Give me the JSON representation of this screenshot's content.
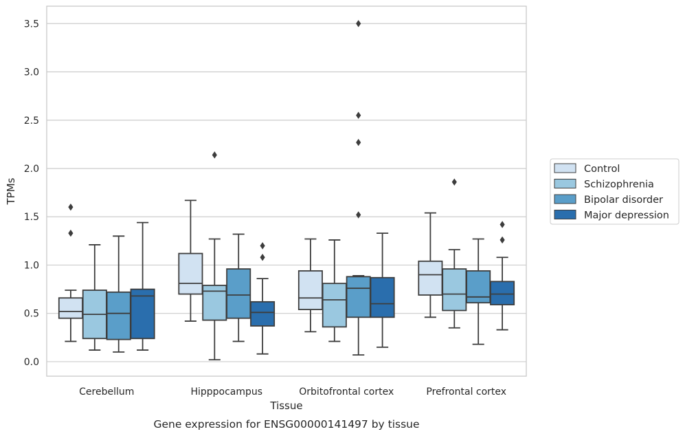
{
  "chart_data": {
    "type": "box",
    "xlabel": "Tissue",
    "ylabel": "TPMs",
    "caption": "Gene expression for ENSG00000141497 by tissue",
    "ylim": [
      -0.15,
      3.68
    ],
    "yticks": [
      0.0,
      0.5,
      1.0,
      1.5,
      2.0,
      2.5,
      3.0,
      3.5
    ],
    "ytick_labels": [
      "0.0",
      "0.5",
      "1.0",
      "1.5",
      "2.0",
      "2.5",
      "3.0",
      "3.5"
    ],
    "grid": "horizontal",
    "legend_position": "right",
    "categories": [
      "Cerebellum",
      "Hipppocampus",
      "Orbitofrontal cortex",
      "Prefrontal cortex"
    ],
    "series": [
      {
        "name": "Control",
        "color": "#d1e2f2",
        "boxes": [
          {
            "whislo": 0.21,
            "q1": 0.45,
            "med": 0.52,
            "q3": 0.66,
            "whishi": 0.74,
            "fliers": [
              1.33,
              1.6
            ]
          },
          {
            "whislo": 0.42,
            "q1": 0.7,
            "med": 0.81,
            "q3": 1.12,
            "whishi": 1.67,
            "fliers": []
          },
          {
            "whislo": 0.31,
            "q1": 0.54,
            "med": 0.66,
            "q3": 0.94,
            "whishi": 1.27,
            "fliers": []
          },
          {
            "whislo": 0.46,
            "q1": 0.69,
            "med": 0.9,
            "q3": 1.04,
            "whishi": 1.54,
            "fliers": []
          }
        ]
      },
      {
        "name": "Schizophrenia",
        "color": "#9ac8e0",
        "boxes": [
          {
            "whislo": 0.12,
            "q1": 0.24,
            "med": 0.49,
            "q3": 0.74,
            "whishi": 1.21,
            "fliers": []
          },
          {
            "whislo": 0.02,
            "q1": 0.43,
            "med": 0.73,
            "q3": 0.79,
            "whishi": 1.27,
            "fliers": [
              2.14
            ]
          },
          {
            "whislo": 0.21,
            "q1": 0.36,
            "med": 0.64,
            "q3": 0.81,
            "whishi": 1.26,
            "fliers": []
          },
          {
            "whislo": 0.35,
            "q1": 0.53,
            "med": 0.7,
            "q3": 0.96,
            "whishi": 1.16,
            "fliers": [
              1.86
            ]
          }
        ]
      },
      {
        "name": "Bipolar disorder",
        "color": "#5a9ec9",
        "boxes": [
          {
            "whislo": 0.1,
            "q1": 0.23,
            "med": 0.5,
            "q3": 0.72,
            "whishi": 1.3,
            "fliers": []
          },
          {
            "whislo": 0.21,
            "q1": 0.45,
            "med": 0.69,
            "q3": 0.96,
            "whishi": 1.32,
            "fliers": []
          },
          {
            "whislo": 0.07,
            "q1": 0.46,
            "med": 0.76,
            "q3": 0.88,
            "whishi": 0.89,
            "fliers": [
              1.52,
              2.27,
              2.55,
              3.5
            ]
          },
          {
            "whislo": 0.18,
            "q1": 0.61,
            "med": 0.67,
            "q3": 0.94,
            "whishi": 1.27,
            "fliers": []
          }
        ]
      },
      {
        "name": "Major depression",
        "color": "#2a6ead",
        "boxes": [
          {
            "whislo": 0.12,
            "q1": 0.24,
            "med": 0.68,
            "q3": 0.75,
            "whishi": 1.44,
            "fliers": []
          },
          {
            "whislo": 0.08,
            "q1": 0.37,
            "med": 0.51,
            "q3": 0.62,
            "whishi": 0.86,
            "fliers": [
              1.08,
              1.2
            ]
          },
          {
            "whislo": 0.15,
            "q1": 0.46,
            "med": 0.6,
            "q3": 0.87,
            "whishi": 1.33,
            "fliers": []
          },
          {
            "whislo": 0.33,
            "q1": 0.59,
            "med": 0.7,
            "q3": 0.83,
            "whishi": 1.08,
            "fliers": [
              1.26,
              1.42
            ]
          }
        ]
      }
    ],
    "colors": {
      "grid": "#cccccc",
      "frame": "#cccccc",
      "line": "#3d3d3d",
      "text": "#262626"
    }
  }
}
